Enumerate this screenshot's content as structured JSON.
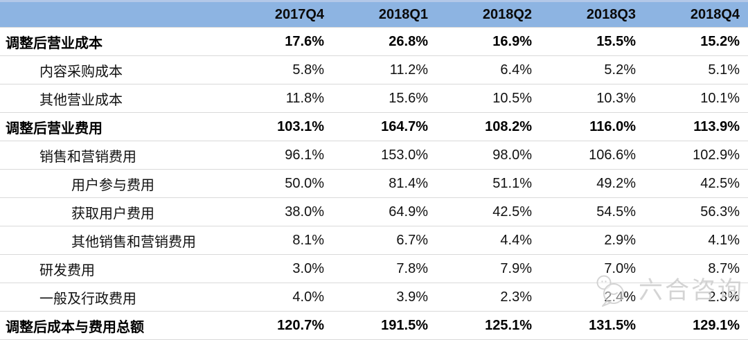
{
  "chart_data": {
    "type": "table",
    "columns": [
      "2017Q4",
      "2018Q1",
      "2018Q2",
      "2018Q3",
      "2018Q4"
    ],
    "rows": [
      {
        "label": "调整后营业成本",
        "indent": 0,
        "bold": true,
        "values": [
          "17.6%",
          "26.8%",
          "16.9%",
          "15.5%",
          "15.2%"
        ]
      },
      {
        "label": "内容采购成本",
        "indent": 1,
        "bold": false,
        "values": [
          "5.8%",
          "11.2%",
          "6.4%",
          "5.2%",
          "5.1%"
        ]
      },
      {
        "label": "其他营业成本",
        "indent": 1,
        "bold": false,
        "values": [
          "11.8%",
          "15.6%",
          "10.5%",
          "10.3%",
          "10.1%"
        ]
      },
      {
        "label": "调整后营业费用",
        "indent": 0,
        "bold": true,
        "values": [
          "103.1%",
          "164.7%",
          "108.2%",
          "116.0%",
          "113.9%"
        ]
      },
      {
        "label": "销售和营销费用",
        "indent": 1,
        "bold": false,
        "values": [
          "96.1%",
          "153.0%",
          "98.0%",
          "106.6%",
          "102.9%"
        ]
      },
      {
        "label": "用户参与费用",
        "indent": 2,
        "bold": false,
        "values": [
          "50.0%",
          "81.4%",
          "51.1%",
          "49.2%",
          "42.5%"
        ]
      },
      {
        "label": "获取用户费用",
        "indent": 2,
        "bold": false,
        "values": [
          "38.0%",
          "64.9%",
          "42.5%",
          "54.5%",
          "56.3%"
        ]
      },
      {
        "label": "其他销售和营销费用",
        "indent": 2,
        "bold": false,
        "values": [
          "8.1%",
          "6.7%",
          "4.4%",
          "2.9%",
          "4.1%"
        ]
      },
      {
        "label": "研发费用",
        "indent": 1,
        "bold": false,
        "values": [
          "3.0%",
          "7.8%",
          "7.9%",
          "7.0%",
          "8.7%"
        ]
      },
      {
        "label": "一般及行政费用",
        "indent": 1,
        "bold": false,
        "values": [
          "4.0%",
          "3.9%",
          "2.3%",
          "2.4%",
          "2.3%"
        ]
      },
      {
        "label": "调整后成本与费用总额",
        "indent": 0,
        "bold": true,
        "values": [
          "120.7%",
          "191.5%",
          "125.1%",
          "131.5%",
          "129.1%"
        ]
      }
    ],
    "layout": {
      "grid": "horizontal-row-separators",
      "header_position": "top"
    }
  },
  "watermark": {
    "text": "六合咨询",
    "icon": "speech-bubbles-logo"
  },
  "colors": {
    "header_bg": "#8DB4E2",
    "header_bg_top_strip": "#B3C8E8",
    "row_border": "#D9D9D9",
    "text": "#111111",
    "watermark": "#CDCDCD"
  }
}
